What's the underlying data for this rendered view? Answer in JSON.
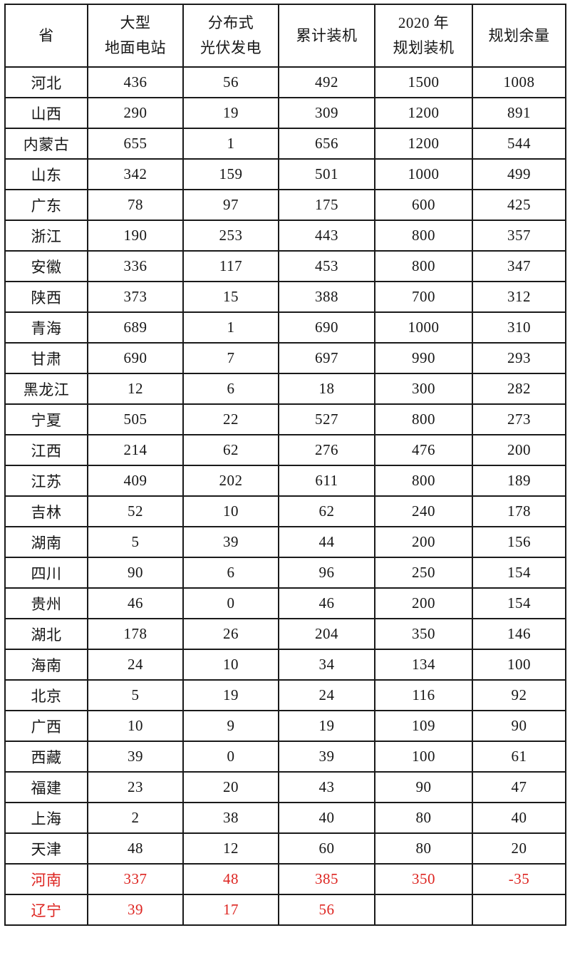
{
  "table": {
    "red_color": "#dd2420",
    "columns": [
      {
        "lines": [
          "省"
        ]
      },
      {
        "lines": [
          "大型",
          "地面电站"
        ]
      },
      {
        "lines": [
          "分布式",
          "光伏发电"
        ]
      },
      {
        "lines": [
          "累计装机"
        ]
      },
      {
        "lines": [
          "2020 年",
          "规划装机"
        ]
      },
      {
        "lines": [
          "规划余量"
        ]
      }
    ],
    "rows": [
      {
        "province": "河北",
        "values": [
          "436",
          "56",
          "492",
          "1500",
          "1008"
        ],
        "highlight": false
      },
      {
        "province": "山西",
        "values": [
          "290",
          "19",
          "309",
          "1200",
          "891"
        ],
        "highlight": false
      },
      {
        "province": "内蒙古",
        "values": [
          "655",
          "1",
          "656",
          "1200",
          "544"
        ],
        "highlight": false
      },
      {
        "province": "山东",
        "values": [
          "342",
          "159",
          "501",
          "1000",
          "499"
        ],
        "highlight": false
      },
      {
        "province": "广东",
        "values": [
          "78",
          "97",
          "175",
          "600",
          "425"
        ],
        "highlight": false
      },
      {
        "province": "浙江",
        "values": [
          "190",
          "253",
          "443",
          "800",
          "357"
        ],
        "highlight": false
      },
      {
        "province": "安徽",
        "values": [
          "336",
          "117",
          "453",
          "800",
          "347"
        ],
        "highlight": false
      },
      {
        "province": "陕西",
        "values": [
          "373",
          "15",
          "388",
          "700",
          "312"
        ],
        "highlight": false
      },
      {
        "province": "青海",
        "values": [
          "689",
          "1",
          "690",
          "1000",
          "310"
        ],
        "highlight": false
      },
      {
        "province": "甘肃",
        "values": [
          "690",
          "7",
          "697",
          "990",
          "293"
        ],
        "highlight": false
      },
      {
        "province": "黑龙江",
        "values": [
          "12",
          "6",
          "18",
          "300",
          "282"
        ],
        "highlight": false
      },
      {
        "province": "宁夏",
        "values": [
          "505",
          "22",
          "527",
          "800",
          "273"
        ],
        "highlight": false
      },
      {
        "province": "江西",
        "values": [
          "214",
          "62",
          "276",
          "476",
          "200"
        ],
        "highlight": false
      },
      {
        "province": "江苏",
        "values": [
          "409",
          "202",
          "611",
          "800",
          "189"
        ],
        "highlight": false
      },
      {
        "province": "吉林",
        "values": [
          "52",
          "10",
          "62",
          "240",
          "178"
        ],
        "highlight": false
      },
      {
        "province": "湖南",
        "values": [
          "5",
          "39",
          "44",
          "200",
          "156"
        ],
        "highlight": false
      },
      {
        "province": "四川",
        "values": [
          "90",
          "6",
          "96",
          "250",
          "154"
        ],
        "highlight": false
      },
      {
        "province": "贵州",
        "values": [
          "46",
          "0",
          "46",
          "200",
          "154"
        ],
        "highlight": false
      },
      {
        "province": "湖北",
        "values": [
          "178",
          "26",
          "204",
          "350",
          "146"
        ],
        "highlight": false
      },
      {
        "province": "海南",
        "values": [
          "24",
          "10",
          "34",
          "134",
          "100"
        ],
        "highlight": false
      },
      {
        "province": "北京",
        "values": [
          "5",
          "19",
          "24",
          "116",
          "92"
        ],
        "highlight": false
      },
      {
        "province": "广西",
        "values": [
          "10",
          "9",
          "19",
          "109",
          "90"
        ],
        "highlight": false
      },
      {
        "province": "西藏",
        "values": [
          "39",
          "0",
          "39",
          "100",
          "61"
        ],
        "highlight": false
      },
      {
        "province": "福建",
        "values": [
          "23",
          "20",
          "43",
          "90",
          "47"
        ],
        "highlight": false
      },
      {
        "province": "上海",
        "values": [
          "2",
          "38",
          "40",
          "80",
          "40"
        ],
        "highlight": false
      },
      {
        "province": "天津",
        "values": [
          "48",
          "12",
          "60",
          "80",
          "20"
        ],
        "highlight": false
      },
      {
        "province": "河南",
        "values": [
          "337",
          "48",
          "385",
          "350",
          "-35"
        ],
        "highlight": true
      },
      {
        "province": "辽宁",
        "values": [
          "39",
          "17",
          "56",
          "",
          ""
        ],
        "highlight": true
      }
    ]
  }
}
